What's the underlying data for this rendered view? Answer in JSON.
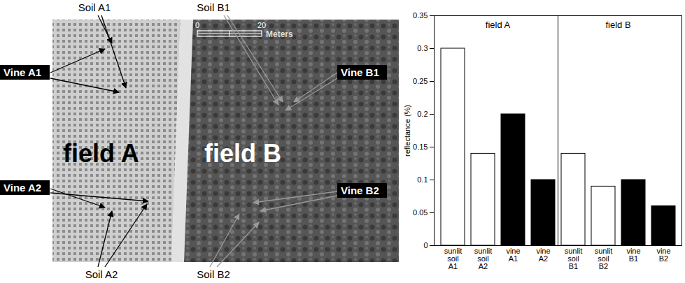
{
  "chart_data": {
    "type": "bar",
    "y_label": "reflectance (%)",
    "categories": [
      "sunlit soil A1",
      "sunlit soil A2",
      "vine A1",
      "vine A2",
      "sunlit soil B1",
      "sunlit soil B2",
      "vine B1",
      "vine B2"
    ],
    "values": [
      0.3,
      0.14,
      0.2,
      0.1,
      0.14,
      0.09,
      0.1,
      0.06
    ],
    "colors": [
      "#ffffff",
      "#ffffff",
      "#000000",
      "#000000",
      "#ffffff",
      "#ffffff",
      "#000000",
      "#000000"
    ],
    "groups": [
      {
        "label": "field A",
        "from": "sunlit soil A1",
        "to": "vine A2"
      },
      {
        "label": "field B",
        "from": "sunlit soil B1",
        "to": "vine B2"
      }
    ],
    "ylim": [
      0,
      0.35
    ],
    "yticks": [
      0,
      0.05,
      0.1,
      0.15,
      0.2,
      0.25,
      0.3,
      0.35
    ],
    "grid": false
  },
  "image": {
    "fields": [
      "field A",
      "field B"
    ],
    "labels": [
      {
        "text": "Soil A1",
        "style": "plain"
      },
      {
        "text": "Soil B1",
        "style": "plain"
      },
      {
        "text": "Vine A1",
        "style": "boxed"
      },
      {
        "text": "Vine B1",
        "style": "boxed"
      },
      {
        "text": "Vine A2",
        "style": "boxed"
      },
      {
        "text": "Vine B2",
        "style": "boxed"
      },
      {
        "text": "Soil A2",
        "style": "plain"
      },
      {
        "text": "Soil B2",
        "style": "plain"
      }
    ],
    "scale_bar": {
      "ticks": [
        0,
        20
      ],
      "unit": "Meters"
    }
  }
}
